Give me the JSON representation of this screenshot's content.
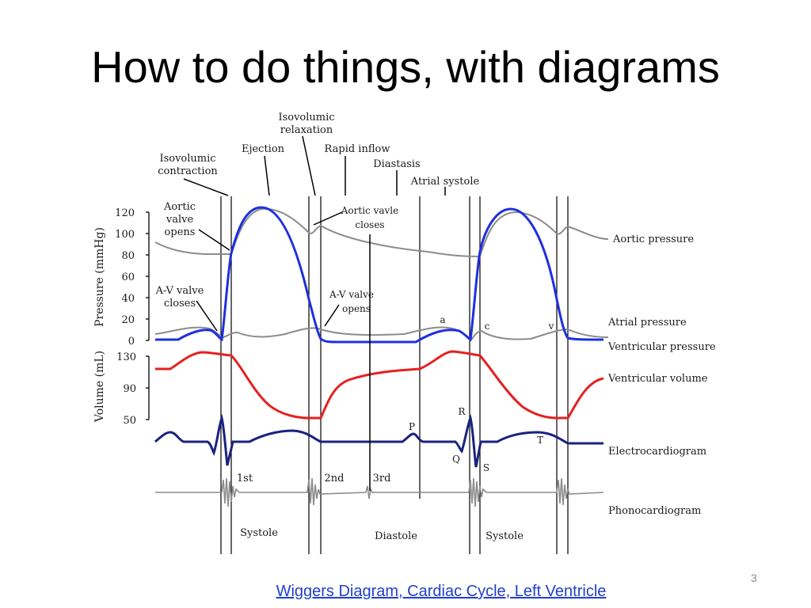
{
  "slide": {
    "title": "How to do things, with diagrams",
    "link_text": "Wiggers Diagram, Cardiac Cycle, Left Ventricle",
    "page_number": "3"
  },
  "diagram": {
    "y_axis_pressure_label": "Pressure (mmHg)",
    "y_axis_volume_label": "Volume (mL)",
    "pressure_ticks": [
      "120",
      "100",
      "80",
      "60",
      "40",
      "20",
      "0"
    ],
    "volume_ticks": [
      "130",
      "90",
      "50"
    ],
    "phases": {
      "isovolumic_contraction": [
        "Isovolumic",
        "contraction"
      ],
      "ejection": "Ejection",
      "isovolumic_relaxation": [
        "Isovolumic",
        "relaxation"
      ],
      "rapid_inflow": "Rapid inflow",
      "diastasis": "Diastasis",
      "atrial_systole": "Atrial systole"
    },
    "events": {
      "aortic_valve_opens": [
        "Aortic",
        "valve",
        "opens"
      ],
      "av_valve_closes": [
        "A-V valve",
        "closes"
      ],
      "aortic_valve_closes": [
        "Aortic vavle",
        "closes"
      ],
      "av_valve_opens": [
        "A-V valve",
        "opens"
      ]
    },
    "waves": {
      "a": "a",
      "c": "c",
      "v": "v",
      "p": "P",
      "q": "Q",
      "r": "R",
      "s": "S",
      "t": "T"
    },
    "heart_sounds": {
      "first": "1st",
      "second": "2nd",
      "third": "3rd"
    },
    "periods": {
      "systole": "Systole",
      "diastole": "Diastole"
    },
    "traces": {
      "aortic_pressure": "Aortic pressure",
      "atrial_pressure": "Atrial pressure",
      "ventricular_pressure": "Ventricular pressure",
      "ventricular_volume": "Ventricular volume",
      "electrocardiogram": "Electrocardiogram",
      "phonocardiogram": "Phonocardiogram"
    },
    "colors": {
      "ventricular_pressure": "#1f2fe0",
      "ventricular_volume": "#e62020",
      "electrocardiogram": "#1a237e",
      "aortic_pressure": "#8c8c8c",
      "atrial_pressure": "#8c8c8c",
      "phonocardiogram": "#8c8c8c",
      "gridline": "#000000"
    }
  }
}
